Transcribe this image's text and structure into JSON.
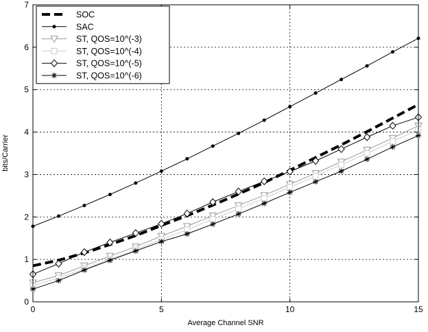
{
  "chart_data": {
    "type": "line",
    "title": "",
    "xlabel": "Average Channel SNR",
    "ylabel": "bits/Carrier",
    "xlim": [
      0,
      15
    ],
    "ylim": [
      0,
      7
    ],
    "xticks": [
      0,
      5,
      10,
      15
    ],
    "yticks": [
      0,
      1,
      2,
      3,
      4,
      5,
      6,
      7
    ],
    "grid": true,
    "legend_position": "top-left",
    "series": [
      {
        "name": "SOC",
        "style": "dashed-thick",
        "color": "#000000",
        "marker": "none",
        "x": [
          0,
          1,
          2,
          3,
          4,
          5,
          6,
          7,
          8,
          9,
          10,
          11,
          12,
          13,
          14,
          15
        ],
        "y": [
          0.85,
          0.98,
          1.15,
          1.35,
          1.56,
          1.8,
          2.03,
          2.28,
          2.54,
          2.81,
          3.1,
          3.4,
          3.7,
          4.01,
          4.33,
          4.65
        ]
      },
      {
        "name": "SAC",
        "style": "solid",
        "color": "#000000",
        "marker": "dot",
        "x": [
          0,
          1,
          2,
          3,
          4,
          5,
          6,
          7,
          8,
          9,
          10,
          11,
          12,
          13,
          14,
          15
        ],
        "y": [
          1.78,
          2.02,
          2.27,
          2.53,
          2.8,
          3.08,
          3.37,
          3.67,
          3.97,
          4.28,
          4.6,
          4.92,
          5.24,
          5.56,
          5.89,
          6.21
        ]
      },
      {
        "name": "ST, QOS=10^(-3)",
        "style": "solid",
        "color": "#9a9a9a",
        "marker": "triangle-down",
        "x": [
          0,
          1,
          2,
          3,
          4,
          5,
          6,
          7,
          8,
          9,
          10,
          11,
          12,
          13,
          14,
          15
        ],
        "y": [
          0.45,
          0.62,
          0.85,
          1.08,
          1.3,
          1.55,
          1.78,
          2.03,
          2.27,
          2.51,
          2.77,
          3.03,
          3.3,
          3.58,
          3.86,
          4.15
        ]
      },
      {
        "name": "ST, QOS=10^(-4)",
        "style": "solid",
        "color": "#cccccc",
        "marker": "square",
        "x": [
          0,
          1,
          2,
          3,
          4,
          5,
          6,
          7,
          8,
          9,
          10,
          11,
          12,
          13,
          14,
          15
        ],
        "y": [
          0.38,
          0.56,
          0.78,
          1.0,
          1.23,
          1.47,
          1.7,
          1.95,
          2.19,
          2.44,
          2.7,
          2.96,
          3.23,
          3.5,
          3.78,
          4.06
        ]
      },
      {
        "name": "ST, QOS=10^(-5)",
        "style": "solid",
        "color": "#000000",
        "marker": "diamond",
        "x": [
          0,
          1,
          2,
          3,
          4,
          5,
          6,
          7,
          8,
          9,
          10,
          11,
          12,
          13,
          14,
          15
        ],
        "y": [
          0.65,
          0.9,
          1.17,
          1.4,
          1.62,
          1.84,
          2.08,
          2.35,
          2.6,
          2.84,
          3.07,
          3.32,
          3.6,
          3.88,
          4.15,
          4.35
        ]
      },
      {
        "name": "ST, QOS=10^(-6)",
        "style": "solid",
        "color": "#000000",
        "marker": "star",
        "x": [
          0,
          1,
          2,
          3,
          4,
          5,
          6,
          7,
          8,
          9,
          10,
          11,
          12,
          13,
          14,
          15
        ],
        "y": [
          0.3,
          0.5,
          0.75,
          0.98,
          1.2,
          1.42,
          1.6,
          1.83,
          2.07,
          2.32,
          2.58,
          2.83,
          3.08,
          3.36,
          3.65,
          3.92
        ]
      }
    ]
  }
}
